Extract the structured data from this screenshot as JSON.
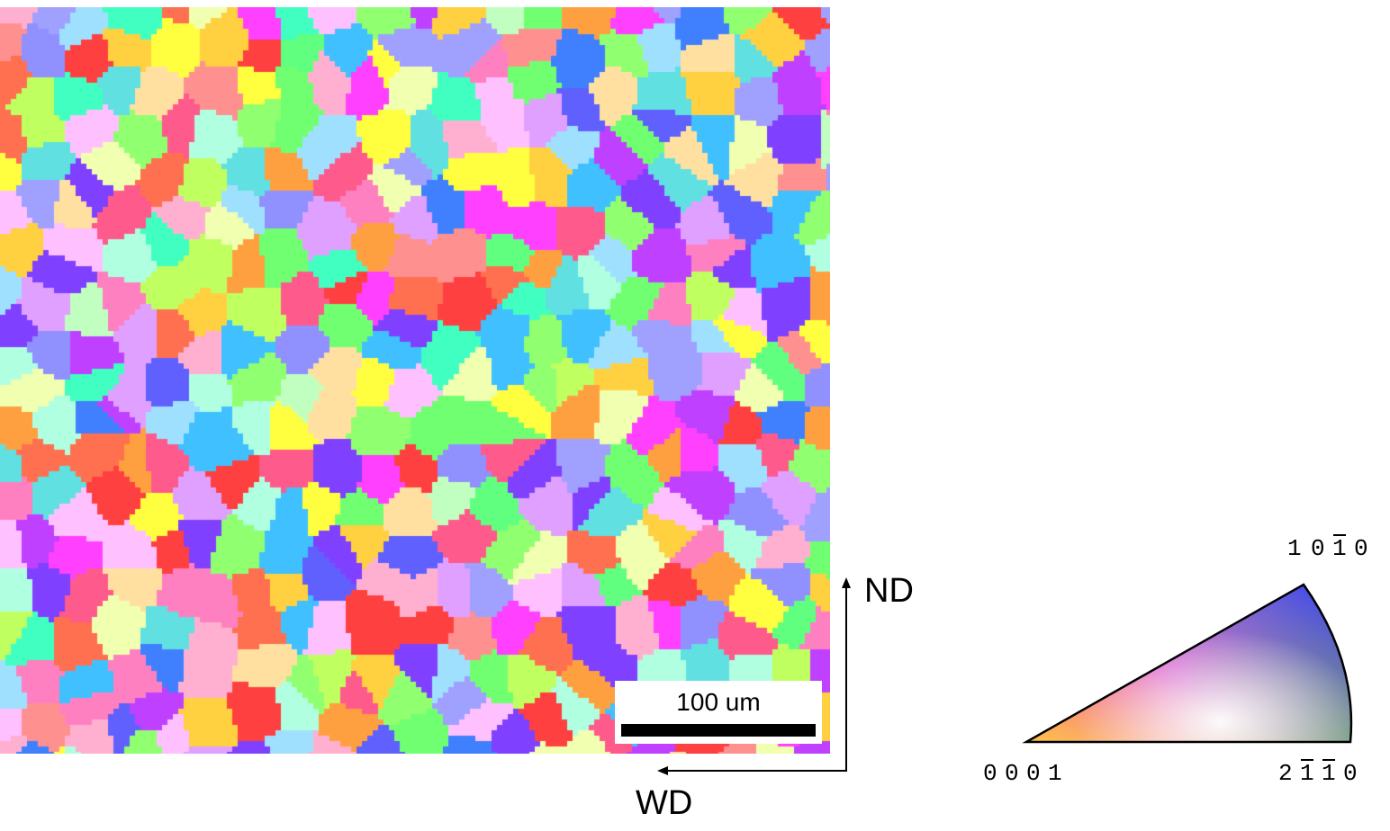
{
  "scale_bar": {
    "label": "100 um"
  },
  "axes": {
    "vertical": "ND",
    "horizontal": "WD"
  },
  "ipf_key": {
    "corner_top": "10ī0",
    "corner_left": "0001",
    "corner_right": "2īī0"
  },
  "ipf_labels": {
    "top": [
      "1",
      "0",
      "1",
      "0"
    ],
    "left": [
      "0",
      "0",
      "0",
      "1"
    ],
    "right": [
      "2",
      "1",
      "1",
      "0"
    ]
  },
  "colors": {
    "red": "#ff3030",
    "green": "#40ff40",
    "blue": "#3030ff"
  }
}
